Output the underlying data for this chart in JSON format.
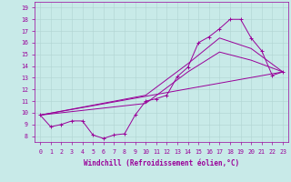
{
  "xlabel": "Windchill (Refroidissement éolien,°C)",
  "background_color": "#c8eae8",
  "line_color": "#990099",
  "xlim": [
    -0.5,
    23.5
  ],
  "ylim": [
    7.5,
    19.5
  ],
  "xticks": [
    0,
    1,
    2,
    3,
    4,
    5,
    6,
    7,
    8,
    9,
    10,
    11,
    12,
    13,
    14,
    15,
    16,
    17,
    18,
    19,
    20,
    21,
    22,
    23
  ],
  "yticks": [
    8,
    9,
    10,
    11,
    12,
    13,
    14,
    15,
    16,
    17,
    18,
    19
  ],
  "line1_x": [
    0,
    1,
    2,
    3,
    4,
    5,
    6,
    7,
    8,
    9,
    10,
    11,
    12,
    13,
    14,
    15,
    16,
    17,
    18,
    19,
    20,
    21,
    22,
    23
  ],
  "line1_y": [
    9.8,
    8.8,
    9.0,
    9.3,
    9.3,
    8.1,
    7.8,
    8.1,
    8.2,
    9.8,
    11.0,
    11.2,
    11.5,
    13.1,
    13.9,
    16.0,
    16.5,
    17.2,
    18.0,
    18.0,
    16.4,
    15.3,
    13.2,
    13.5
  ],
  "line2_x": [
    0,
    23
  ],
  "line2_y": [
    9.8,
    13.5
  ],
  "line3_x": [
    0,
    10,
    14,
    17,
    20,
    23
  ],
  "line3_y": [
    9.8,
    10.8,
    13.5,
    15.2,
    14.5,
    13.5
  ],
  "line4_x": [
    0,
    10,
    14,
    17,
    20,
    23
  ],
  "line4_y": [
    9.8,
    11.5,
    14.2,
    16.4,
    15.5,
    13.5
  ],
  "xlabel_fontsize": 5.5,
  "tick_fontsize": 4.8
}
